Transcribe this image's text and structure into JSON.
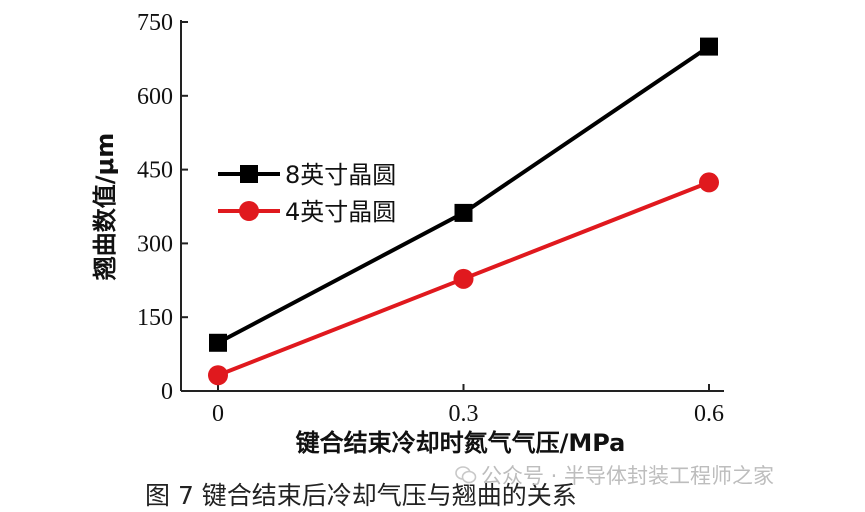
{
  "chart_data": {
    "type": "line",
    "x": [
      0,
      0.3,
      0.6
    ],
    "x_tick_labels": [
      "0",
      "0.3",
      "0.6"
    ],
    "y_ticks": [
      0,
      150,
      300,
      450,
      600,
      750
    ],
    "y_tick_labels": [
      "0",
      "150",
      "300",
      "450",
      "600",
      "750"
    ],
    "xlim": [
      -0.05,
      0.61
    ],
    "ylim": [
      0,
      750
    ],
    "xlabel": "键合结束冷却时氮气气压/MPa",
    "ylabel": "翘曲数值/μm",
    "legend_position": "center-left",
    "series": [
      {
        "name": "8英寸晶圆",
        "values": [
          98,
          362,
          700
        ],
        "color": "#000000",
        "marker": "square"
      },
      {
        "name": "4英寸晶圆",
        "values": [
          32,
          228,
          424
        ],
        "color": "#e0191e",
        "marker": "circle"
      }
    ]
  },
  "caption": "图 7   键合结束后冷却气压与翘曲的关系",
  "watermark": "公众号 · 半导体封装工程师之家"
}
